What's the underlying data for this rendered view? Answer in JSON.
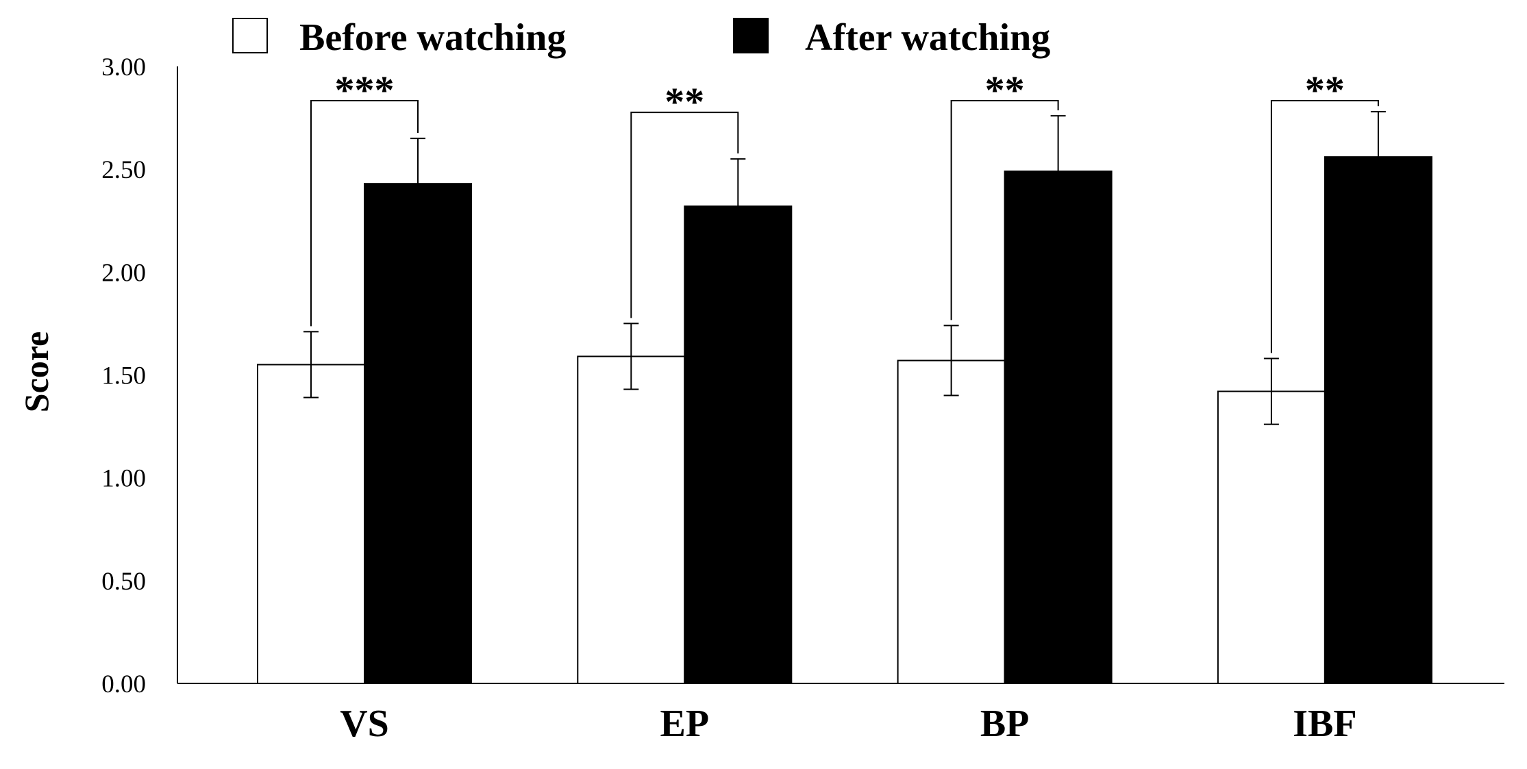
{
  "chart_data": {
    "type": "bar",
    "categories": [
      "VS",
      "EP",
      "BP",
      "IBF"
    ],
    "series": [
      {
        "name": "Before watching",
        "values": [
          1.55,
          1.59,
          1.57,
          1.42
        ],
        "errors": [
          0.16,
          0.16,
          0.17,
          0.16
        ],
        "color": "#ffffff",
        "stroke": "#000000"
      },
      {
        "name": "After watching",
        "values": [
          2.43,
          2.32,
          2.49,
          2.56
        ],
        "errors": [
          0.22,
          0.23,
          0.27,
          0.22
        ],
        "color": "#000000",
        "stroke": "#000000"
      }
    ],
    "significance": [
      "***",
      "**",
      "**",
      "**"
    ],
    "xlabel": "",
    "ylabel": "Score",
    "ylim": [
      0,
      3
    ],
    "yticks": [
      "0.00",
      "0.50",
      "1.00",
      "1.50",
      "2.00",
      "2.50",
      "3.00"
    ],
    "legend_position": "top",
    "grid": false
  }
}
